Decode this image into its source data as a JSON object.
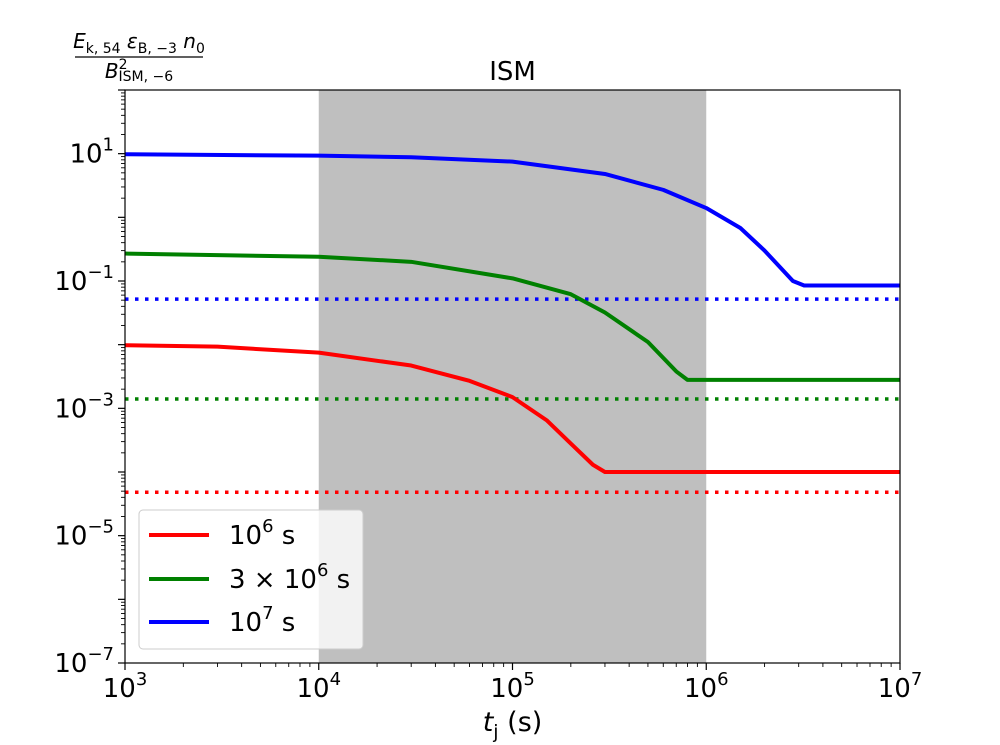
{
  "chart_data": {
    "type": "line",
    "title": "ISM",
    "xlabel": {
      "main": "t",
      "sub": "j",
      "rest": " (s)"
    },
    "ylabel": {
      "numerator": {
        "E": "E",
        "E_sub": "k, 54",
        "eps": "ε",
        "eps_sub": "B, −3",
        "n": "n",
        "n_sub": "0"
      },
      "denominator": {
        "B": "B",
        "B_sup": "2",
        "B_sub": "ISM, −6"
      }
    },
    "x_scale": "log",
    "y_scale": "log",
    "xlim": [
      1000,
      10000000
    ],
    "ylim": [
      1e-07,
      100
    ],
    "x_ticks": [
      {
        "value": 1000,
        "base": "10",
        "exp": "3"
      },
      {
        "value": 10000,
        "base": "10",
        "exp": "4"
      },
      {
        "value": 100000,
        "base": "10",
        "exp": "5"
      },
      {
        "value": 1000000,
        "base": "10",
        "exp": "6"
      },
      {
        "value": 10000000,
        "base": "10",
        "exp": "7"
      }
    ],
    "y_ticks": [
      {
        "value": 1e-07,
        "base": "10",
        "exp": "−7"
      },
      {
        "value": 1e-05,
        "base": "10",
        "exp": "−5"
      },
      {
        "value": 0.001,
        "base": "10",
        "exp": "−3"
      },
      {
        "value": 0.1,
        "base": "10",
        "exp": "−1"
      },
      {
        "value": 10,
        "base": "10",
        "exp": "1"
      }
    ],
    "shaded_region": {
      "x": [
        10000,
        1000000
      ],
      "color": "#bfbfbf"
    },
    "grid": false,
    "legend_position": "lower-left",
    "series": [
      {
        "name": {
          "prefix": "",
          "base": "10",
          "exp": "6",
          "suffix": " s"
        },
        "color": "#ff0000",
        "style": "solid",
        "points": [
          [
            1000,
            0.0098
          ],
          [
            3000,
            0.0093
          ],
          [
            10000,
            0.0075
          ],
          [
            30000,
            0.0047
          ],
          [
            60000,
            0.0027
          ],
          [
            100000,
            0.0015
          ],
          [
            150000,
            0.00065
          ],
          [
            200000,
            0.00028
          ],
          [
            260000,
            0.00013
          ],
          [
            300000,
            0.0001
          ],
          [
            10000000,
            0.0001
          ]
        ]
      },
      {
        "name": {
          "prefix": "3 × ",
          "base": "10",
          "exp": "6",
          "suffix": " s"
        },
        "color": "#008000",
        "style": "solid",
        "points": [
          [
            1000,
            0.27
          ],
          [
            10000,
            0.24
          ],
          [
            30000,
            0.2
          ],
          [
            100000,
            0.11
          ],
          [
            200000,
            0.062
          ],
          [
            300000,
            0.032
          ],
          [
            500000,
            0.011
          ],
          [
            700000,
            0.0038
          ],
          [
            800000,
            0.0028
          ],
          [
            10000000,
            0.0028
          ]
        ]
      },
      {
        "name": {
          "prefix": "",
          "base": "10",
          "exp": "7",
          "suffix": " s"
        },
        "color": "#0000ff",
        "style": "solid",
        "points": [
          [
            1000,
            9.8
          ],
          [
            10000,
            9.3
          ],
          [
            30000,
            8.8
          ],
          [
            100000,
            7.5
          ],
          [
            300000,
            4.8
          ],
          [
            600000,
            2.7
          ],
          [
            1000000,
            1.4
          ],
          [
            1500000,
            0.68
          ],
          [
            2000000,
            0.3
          ],
          [
            2800000,
            0.1
          ],
          [
            3200000,
            0.085
          ],
          [
            10000000,
            0.085
          ]
        ]
      }
    ],
    "reference_lines": [
      {
        "color": "#ff0000",
        "style": "dotted",
        "y": 4.8e-05
      },
      {
        "color": "#008000",
        "style": "dotted",
        "y": 0.0014
      },
      {
        "color": "#0000ff",
        "style": "dotted",
        "y": 0.052
      }
    ]
  }
}
